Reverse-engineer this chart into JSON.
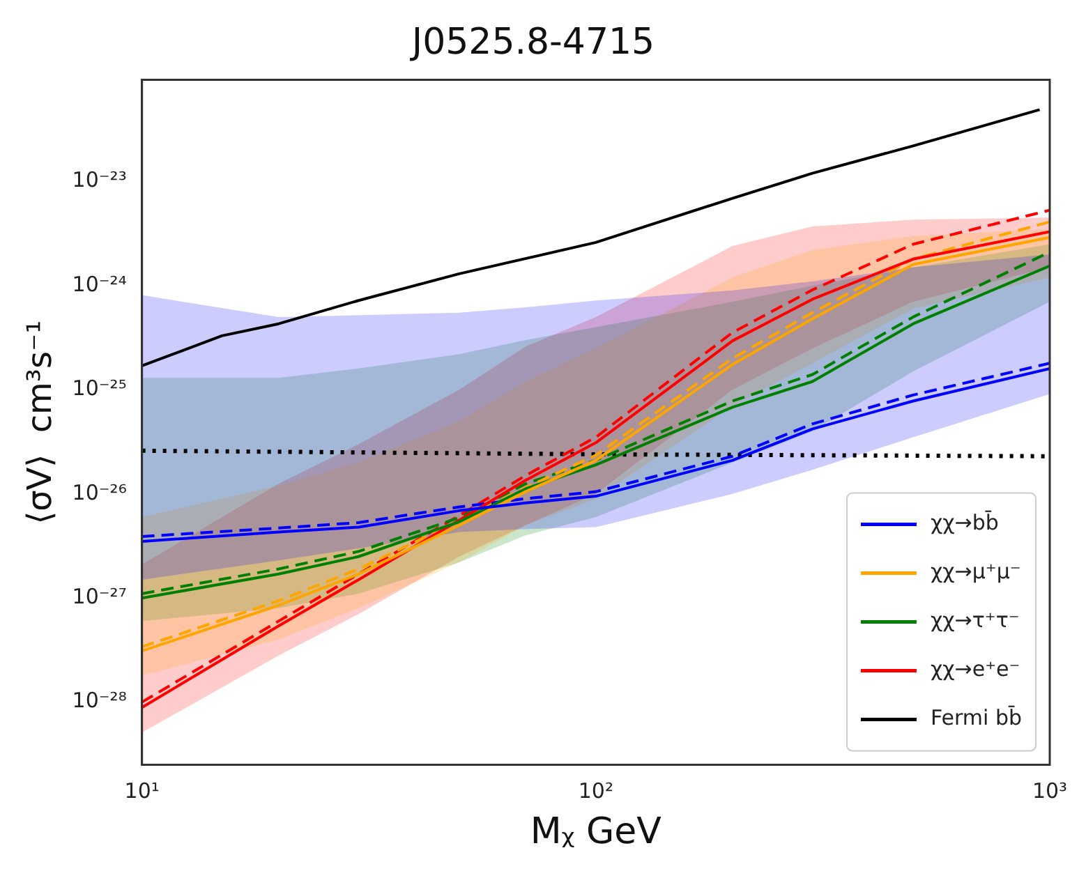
{
  "chart_data": {
    "type": "line",
    "title": "J0525.8-4715",
    "xlabel": "Mᵪ GeV",
    "ylabel": "⟨σV⟩  cm³s⁻¹",
    "log": "xy",
    "grid": false,
    "legend": "bottom right",
    "marker": "none",
    "x": [
      10,
      20,
      30,
      50,
      70,
      100,
      200,
      300,
      500,
      1000
    ],
    "xlim": [
      10,
      1000
    ],
    "xticks": [
      {
        "value": 10,
        "label": "10¹"
      },
      {
        "value": 100,
        "label": "10²"
      },
      {
        "value": 1000,
        "label": "10³"
      }
    ],
    "ylim": [
      2.5e-29,
      9.5e-23
    ],
    "yticks": [
      {
        "value": 1e-28,
        "label": "10⁻²⁸"
      },
      {
        "value": 1e-27,
        "label": "10⁻²⁷"
      },
      {
        "value": 1e-26,
        "label": "10⁻²⁶"
      },
      {
        "value": 1e-25,
        "label": "10⁻²⁵"
      },
      {
        "value": 1e-24,
        "label": "10⁻²⁴"
      },
      {
        "value": 1e-23,
        "label": "10⁻²³"
      }
    ],
    "series": [
      {
        "name": "χχ→bb̄",
        "color": "#0000ff",
        "line_style": "solid",
        "values": [
          3.5e-27,
          4.3e-27,
          4.8e-27,
          6.9e-27,
          8.2e-27,
          9.5e-27,
          2.1e-26,
          4.2e-26,
          7.8e-26,
          1.6e-25
        ],
        "lower": [
          1.5e-27,
          2.3e-27,
          3e-27,
          4.3e-27,
          4.6e-27,
          4.8e-27,
          1e-26,
          1.7e-26,
          3.5e-26,
          9.1e-26
        ],
        "upper": [
          8.1e-25,
          5e-25,
          5.2e-25,
          5.5e-25,
          6.2e-25,
          7.2e-25,
          9e-25,
          1.1e-24,
          1.5e-24,
          2e-24
        ]
      },
      {
        "name": "χχ→μ⁺μ⁻",
        "color": "#ffa500",
        "line_style": "solid",
        "values": [
          3.1e-28,
          8.5e-28,
          1.7e-27,
          5e-27,
          1.05e-26,
          2.1e-26,
          1.75e-25,
          4.8e-25,
          1.6e-24,
          2.9e-24
        ],
        "lower": [
          1.8e-28,
          4e-28,
          8e-28,
          2.2e-27,
          5e-27,
          9e-27,
          7e-26,
          1.8e-25,
          6e-25,
          1.2e-24
        ],
        "upper": [
          6e-27,
          1.2e-26,
          2e-26,
          5e-26,
          1.2e-25,
          2.5e-25,
          1.2e-24,
          2.2e-24,
          3e-24,
          3.5e-24
        ]
      },
      {
        "name": "χχ→τ⁺τ⁻",
        "color": "#008000",
        "line_style": "solid",
        "values": [
          1e-27,
          1.7e-27,
          2.5e-27,
          5.4e-27,
          1.12e-26,
          1.9e-26,
          6.8e-26,
          1.2e-25,
          4.3e-25,
          1.55e-24
        ],
        "lower": [
          6e-28,
          8e-28,
          1.1e-27,
          2.2e-27,
          4e-27,
          6e-27,
          2e-26,
          4e-26,
          1.5e-25,
          7e-25
        ],
        "upper": [
          1.3e-25,
          1.3e-25,
          1.6e-25,
          2.2e-25,
          3e-25,
          4e-25,
          7e-25,
          1e-24,
          1.5e-24,
          2.5e-24
        ]
      },
      {
        "name": "χχ→e⁺e⁻",
        "color": "#ff0000",
        "line_style": "solid",
        "values": [
          8.9e-29,
          5.4e-28,
          1.5e-27,
          5.6e-27,
          1.35e-26,
          3.1e-26,
          2.95e-25,
          7.4e-25,
          1.8e-24,
          3.3e-24
        ],
        "lower": [
          5.1e-29,
          2.8e-28,
          7e-28,
          2.5e-27,
          5e-27,
          1e-26,
          1e-25,
          2.5e-25,
          7e-25,
          1.5e-24
        ],
        "upper": [
          2.1e-27,
          1.25e-26,
          3e-26,
          1e-25,
          2.6e-25,
          5e-25,
          2.4e-24,
          3.7e-24,
          4.3e-24,
          4.5e-24
        ]
      },
      {
        "name": "Fermi bb̄",
        "color": "#000000",
        "line_style": "solid",
        "x": [
          10,
          15,
          20,
          30,
          50,
          100,
          200,
          300,
          500,
          950
        ],
        "values": [
          1.7e-25,
          3.3e-25,
          4.3e-25,
          7.2e-25,
          1.3e-24,
          2.6e-24,
          6.9e-24,
          1.2e-23,
          2.2e-23,
          4.9e-23
        ]
      },
      {
        "color": "#0000ff",
        "line_style": "dashed",
        "values": [
          3.9e-27,
          4.7e-27,
          5.3e-27,
          7.5e-27,
          9e-27,
          1.05e-26,
          2.3e-26,
          4.7e-26,
          8.9e-26,
          1.8e-25
        ]
      },
      {
        "color": "#ffa500",
        "line_style": "dashed",
        "values": [
          3.4e-28,
          9.4e-28,
          1.9e-27,
          5.5e-27,
          1.15e-26,
          2.35e-26,
          2e-25,
          5.5e-25,
          1.8e-24,
          4.1e-24
        ]
      },
      {
        "color": "#008000",
        "line_style": "dashed",
        "values": [
          1.1e-27,
          1.9e-27,
          2.8e-27,
          5.9e-27,
          1.25e-26,
          2.1e-26,
          7.8e-26,
          1.4e-25,
          5e-25,
          2.1e-24
        ]
      },
      {
        "color": "#ff0000",
        "line_style": "dashed",
        "values": [
          1e-28,
          6e-28,
          1.7e-27,
          6.2e-27,
          1.5e-26,
          3.5e-26,
          3.55e-25,
          9.1e-25,
          2.5e-24,
          5.3e-24
        ]
      },
      {
        "color": "#000000",
        "line_style": "dotted",
        "x": [
          10,
          100,
          1000
        ],
        "values": [
          2.6e-26,
          2.4e-26,
          2.3e-26
        ]
      }
    ]
  }
}
